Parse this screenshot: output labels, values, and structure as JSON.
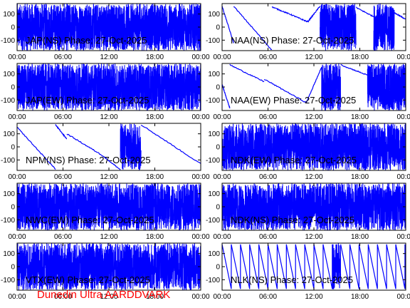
{
  "footer": "Dunedin Ultra AARDDVARK",
  "colors": {
    "trace": "#0000ff",
    "axis": "#000000",
    "footer": "#ff0000",
    "background": "#ffffff"
  },
  "chart_data": [
    {
      "type": "line",
      "title": "JAP(NS) Phase: 27-Oct-2025",
      "xlabel": "",
      "ylabel": "",
      "xlim": [
        "00:00",
        "24:00"
      ],
      "ylim": [
        -180,
        180
      ],
      "xticks": [
        "00:00",
        "06:00",
        "12:00",
        "18:00",
        "00:00"
      ],
      "yticks": [
        100,
        0,
        -100
      ],
      "pattern": "noise",
      "segments": [
        {
          "from": 0,
          "to": 24
        }
      ]
    },
    {
      "type": "line",
      "title": "NAA(NS) Phase: 27-Oct-2025",
      "xlabel": "",
      "ylabel": "",
      "xlim": [
        "00:00",
        "24:00"
      ],
      "ylim": [
        -180,
        180
      ],
      "xticks": [
        "00:00",
        "06:00",
        "12:00",
        "18:00",
        "00:00"
      ],
      "yticks": [
        100,
        0,
        -100
      ],
      "pattern": "drift",
      "segments": [
        {
          "from": 0,
          "to": 1.5,
          "y0": 160,
          "y1": -120
        },
        {
          "from": 1.5,
          "to": 6.5,
          "y0": 160,
          "y1": -175
        },
        {
          "from": 6.5,
          "to": 9,
          "y0": 155,
          "y1": 95
        },
        {
          "from": 9,
          "to": 11.2,
          "y0": 95,
          "y1": 40
        },
        {
          "from": 11.2,
          "to": 12.8,
          "y0": 40,
          "y1": 160
        },
        {
          "from": 12.8,
          "to": 17.5,
          "noise": true
        },
        {
          "from": 17.5,
          "to": 19.8,
          "y0": 150,
          "y1": 80
        },
        {
          "from": 19.8,
          "to": 22.5,
          "noise": true
        },
        {
          "from": 22.5,
          "to": 24,
          "y0": 110,
          "y1": 60
        }
      ]
    },
    {
      "type": "line",
      "title": "JAP(EW) Phase: 27-Oct-2025",
      "xlabel": "",
      "ylabel": "",
      "xlim": [
        "00:00",
        "24:00"
      ],
      "ylim": [
        -180,
        180
      ],
      "xticks": [
        "00:00",
        "06:00",
        "12:00",
        "18:00",
        "00:00"
      ],
      "yticks": [
        100,
        0,
        -100
      ],
      "pattern": "noise",
      "segments": [
        {
          "from": 0,
          "to": 24
        }
      ]
    },
    {
      "type": "line",
      "title": "NAA(EW) Phase: 27-Oct-2025",
      "xlabel": "",
      "ylabel": "",
      "xlim": [
        "00:00",
        "24:00"
      ],
      "ylim": [
        -180,
        180
      ],
      "xticks": [
        "00:00",
        "06:00",
        "12:00",
        "18:00",
        "00:00"
      ],
      "yticks": [
        100,
        0,
        -100
      ],
      "pattern": "drift",
      "segments": [
        {
          "from": 0,
          "to": 1,
          "y0": 20,
          "y1": -160
        },
        {
          "from": 1,
          "to": 5.5,
          "y0": 170,
          "y1": 40
        },
        {
          "from": 5.5,
          "to": 11,
          "y0": 60,
          "y1": -120
        },
        {
          "from": 11,
          "to": 13,
          "y0": -120,
          "y1": 150
        },
        {
          "from": 13,
          "to": 15.5,
          "noise": true
        },
        {
          "from": 15.5,
          "to": 19,
          "y0": 170,
          "y1": 90
        },
        {
          "from": 19,
          "to": 24,
          "noise": true
        }
      ]
    },
    {
      "type": "line",
      "title": "NPM(NS) Phase: 27-Oct-2025",
      "xlabel": "",
      "ylabel": "",
      "xlim": [
        "00:00",
        "24:00"
      ],
      "ylim": [
        -180,
        180
      ],
      "xticks": [
        "00:00",
        "06:00",
        "12:00",
        "18:00",
        "00:00"
      ],
      "yticks": [
        100,
        0,
        -100
      ],
      "pattern": "drift",
      "segments": [
        {
          "from": 0,
          "to": 5,
          "y0": 150,
          "y1": -170
        },
        {
          "from": 5,
          "to": 6.5,
          "y0": 170,
          "y1": 60
        },
        {
          "from": 6.5,
          "to": 11,
          "y0": 100,
          "y1": -60
        },
        {
          "from": 11,
          "to": 13.5,
          "y0": -60,
          "y1": -175
        },
        {
          "from": 13.5,
          "to": 16.2,
          "noise": true
        },
        {
          "from": 16.2,
          "to": 24,
          "y0": 170,
          "y1": -130
        }
      ]
    },
    {
      "type": "line",
      "title": "NDK(EW) Phase: 27-Oct-2025",
      "xlabel": "",
      "ylabel": "",
      "xlim": [
        "00:00",
        "24:00"
      ],
      "ylim": [
        -180,
        180
      ],
      "xticks": [
        "00:00",
        "06:00",
        "12:00",
        "18:00",
        "00:00"
      ],
      "yticks": [
        100,
        0,
        -100
      ],
      "pattern": "noise",
      "segments": [
        {
          "from": 0,
          "to": 24
        }
      ]
    },
    {
      "type": "line",
      "title": "NWC(EW) Phase: 27-Oct-2025",
      "xlabel": "",
      "ylabel": "",
      "xlim": [
        "00:00",
        "24:00"
      ],
      "ylim": [
        -180,
        180
      ],
      "xticks": [
        "00:00",
        "06:00",
        "12:00",
        "18:00",
        "00:00"
      ],
      "yticks": [
        100,
        0,
        -100
      ],
      "pattern": "noise",
      "segments": [
        {
          "from": 0,
          "to": 24
        }
      ]
    },
    {
      "type": "line",
      "title": "NDK(NS) Phase: 27-Oct-2025",
      "xlabel": "",
      "ylabel": "",
      "xlim": [
        "00:00",
        "24:00"
      ],
      "ylim": [
        -180,
        180
      ],
      "xticks": [
        "00:00",
        "06:00",
        "12:00",
        "18:00",
        "00:00"
      ],
      "yticks": [
        100,
        0,
        -100
      ],
      "pattern": "noise",
      "segments": [
        {
          "from": 0,
          "to": 24
        }
      ]
    },
    {
      "type": "line",
      "title": "VTX(EW) Phase: 27-Oct-2025",
      "xlabel": "",
      "ylabel": "",
      "xlim": [
        "00:00",
        "24:00"
      ],
      "ylim": [
        -180,
        180
      ],
      "xticks": [
        "00:00",
        "06:00",
        "12:00",
        "18:00",
        "00:00"
      ],
      "yticks": [
        100,
        0,
        -100
      ],
      "pattern": "noise",
      "segments": [
        {
          "from": 0,
          "to": 24
        }
      ]
    },
    {
      "type": "line",
      "title": "NLK(NS) Phase: 27-Oct-2025",
      "xlabel": "",
      "ylabel": "",
      "xlim": [
        "00:00",
        "24:00"
      ],
      "ylim": [
        -180,
        180
      ],
      "xticks": [
        "00:00",
        "06:00",
        "12:00",
        "18:00",
        "00:00"
      ],
      "yticks": [
        100,
        0,
        -100
      ],
      "pattern": "sawtooth",
      "segments": [
        {
          "from": 0,
          "to": 14.5,
          "period": 1.2,
          "y0": 170,
          "y1": -170
        },
        {
          "from": 14.5,
          "to": 15.5,
          "noise": true
        },
        {
          "from": 15.5,
          "to": 24,
          "period": 1.2,
          "y0": 170,
          "y1": -170
        }
      ]
    }
  ]
}
